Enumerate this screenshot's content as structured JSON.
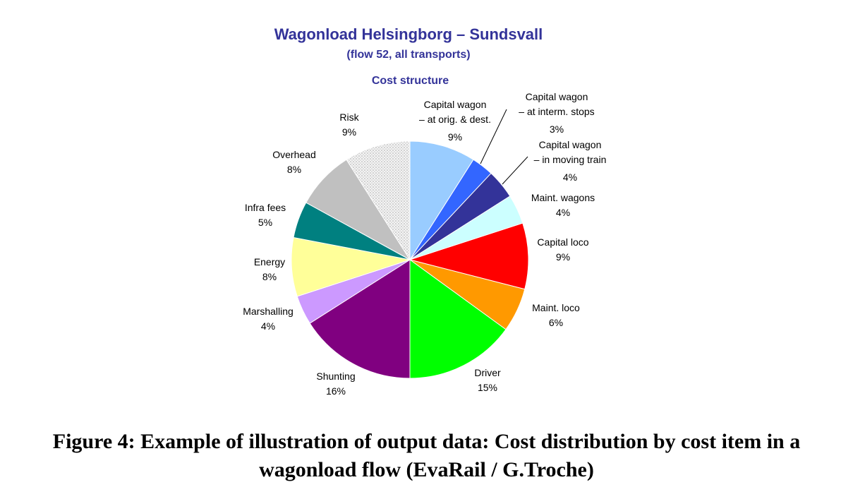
{
  "chart_data": {
    "type": "pie",
    "title": "Wagonload Helsingborg – Sundsvall",
    "subtitle": "(flow 52, all transports)",
    "caption": "Cost structure",
    "slices": [
      {
        "label": [
          "Capital wagon",
          "– at orig. & dest."
        ],
        "pct_label": "9%",
        "value": 9,
        "color": "#99ccff"
      },
      {
        "label": [
          "Capital wagon",
          "– at interm. stops"
        ],
        "pct_label": "3%",
        "value": 3,
        "color": "#3366ff"
      },
      {
        "label": [
          "Capital wagon",
          "– in moving train"
        ],
        "pct_label": "4%",
        "value": 4,
        "color": "#333399"
      },
      {
        "label": [
          "Maint. wagons"
        ],
        "pct_label": "4%",
        "value": 4,
        "color": "#ccffff"
      },
      {
        "label": [
          "Capital loco"
        ],
        "pct_label": "9%",
        "value": 9,
        "color": "#ff0000"
      },
      {
        "label": [
          "Maint. loco"
        ],
        "pct_label": "6%",
        "value": 6,
        "color": "#ff9900"
      },
      {
        "label": [
          "Driver"
        ],
        "pct_label": "15%",
        "value": 15,
        "color": "#00ff00"
      },
      {
        "label": [
          "Shunting"
        ],
        "pct_label": "16%",
        "value": 16,
        "color": "#800080"
      },
      {
        "label": [
          "Marshalling"
        ],
        "pct_label": "4%",
        "value": 4,
        "color": "#cc99ff"
      },
      {
        "label": [
          "Energy"
        ],
        "pct_label": "8%",
        "value": 8,
        "color": "#ffff99"
      },
      {
        "label": [
          "Infra fees"
        ],
        "pct_label": "5%",
        "value": 5,
        "color": "#008080"
      },
      {
        "label": [
          "Overhead"
        ],
        "pct_label": "8%",
        "value": 8,
        "color": "#c0c0c0"
      },
      {
        "label": [
          "Risk"
        ],
        "pct_label": "9%",
        "value": 9,
        "color": "#eeeeee",
        "pattern": "dotted"
      }
    ],
    "start_angle": "12 o'clock",
    "direction": "clockwise",
    "legend": "none (labels beside slices)"
  },
  "figure_caption": {
    "line1": "Figure 4: Example of illustration of output data: Cost distribution by cost item in a",
    "line2": "wagonload flow (EvaRail / G.Troche)"
  }
}
